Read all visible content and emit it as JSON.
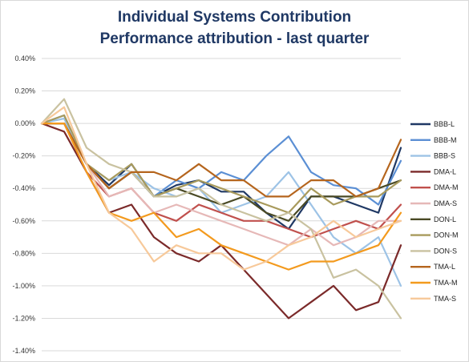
{
  "chart_data": {
    "type": "line",
    "title": "Individual Systems Contribution",
    "subtitle": "Performance attribution - last quarter",
    "ylim": [
      -1.4,
      0.4
    ],
    "yticks": [
      "0.40%",
      "0.20%",
      "0.00%",
      "-0.20%",
      "-0.40%",
      "-0.60%",
      "-0.80%",
      "-1.00%",
      "-1.20%",
      "-1.40%"
    ],
    "ytick_values": [
      0.4,
      0.2,
      0.0,
      -0.2,
      -0.4,
      -0.6,
      -0.8,
      -1.0,
      -1.2,
      -1.4
    ],
    "grid": true,
    "legend": "right",
    "x": [
      0,
      4,
      8,
      12,
      16,
      20,
      24,
      28,
      32,
      36,
      40,
      44,
      48,
      52,
      56,
      60,
      64
    ],
    "xlim": [
      0,
      64
    ],
    "series": [
      {
        "name": "BBB-L",
        "color": "#1f3864",
        "values": [
          0.0,
          0.0,
          -0.25,
          -0.38,
          -0.25,
          -0.45,
          -0.38,
          -0.35,
          -0.42,
          -0.42,
          -0.55,
          -0.65,
          -0.45,
          -0.45,
          -0.5,
          -0.55,
          -0.15
        ]
      },
      {
        "name": "BBB-M",
        "color": "#5b8fd4",
        "values": [
          0.0,
          0.05,
          -0.25,
          -0.4,
          -0.3,
          -0.45,
          -0.35,
          -0.4,
          -0.3,
          -0.35,
          -0.2,
          -0.08,
          -0.3,
          -0.38,
          -0.4,
          -0.5,
          -0.23
        ]
      },
      {
        "name": "BBB-S",
        "color": "#9dc3e6",
        "values": [
          0.0,
          0.03,
          -0.25,
          -0.35,
          -0.3,
          -0.4,
          -0.45,
          -0.4,
          -0.55,
          -0.5,
          -0.45,
          -0.3,
          -0.5,
          -0.7,
          -0.8,
          -0.7,
          -1.0
        ]
      },
      {
        "name": "DMA-L",
        "color": "#7b2a2a",
        "values": [
          0.0,
          -0.05,
          -0.3,
          -0.55,
          -0.5,
          -0.7,
          -0.8,
          -0.85,
          -0.75,
          -0.9,
          -1.05,
          -1.2,
          -1.1,
          -1.0,
          -1.15,
          -1.1,
          -0.75
        ]
      },
      {
        "name": "DMA-M",
        "color": "#c0504d",
        "values": [
          0.0,
          0.0,
          -0.3,
          -0.45,
          -0.4,
          -0.55,
          -0.6,
          -0.5,
          -0.55,
          -0.6,
          -0.6,
          -0.65,
          -0.7,
          -0.65,
          -0.6,
          -0.65,
          -0.5
        ]
      },
      {
        "name": "DMA-S",
        "color": "#e6b8b7",
        "values": [
          0.0,
          0.0,
          -0.25,
          -0.45,
          -0.4,
          -0.55,
          -0.5,
          -0.55,
          -0.6,
          -0.65,
          -0.7,
          -0.75,
          -0.65,
          -0.75,
          -0.7,
          -0.6,
          -0.6
        ]
      },
      {
        "name": "DON-L",
        "color": "#4a4a25",
        "values": [
          0.0,
          0.0,
          -0.25,
          -0.4,
          -0.3,
          -0.45,
          -0.4,
          -0.45,
          -0.5,
          -0.45,
          -0.55,
          -0.6,
          -0.45,
          -0.45,
          -0.45,
          -0.4,
          -0.35
        ]
      },
      {
        "name": "DON-M",
        "color": "#a89a5c",
        "values": [
          0.0,
          0.05,
          -0.25,
          -0.35,
          -0.25,
          -0.45,
          -0.4,
          -0.35,
          -0.4,
          -0.45,
          -0.5,
          -0.55,
          -0.4,
          -0.5,
          -0.45,
          -0.45,
          -0.35
        ]
      },
      {
        "name": "DON-S",
        "color": "#c9c2a0",
        "values": [
          0.0,
          0.15,
          -0.15,
          -0.25,
          -0.3,
          -0.45,
          -0.45,
          -0.4,
          -0.5,
          -0.55,
          -0.6,
          -0.55,
          -0.65,
          -0.95,
          -0.9,
          -1.0,
          -1.2
        ]
      },
      {
        "name": "TMA-L",
        "color": "#b5651d",
        "values": [
          0.0,
          0.0,
          -0.25,
          -0.4,
          -0.3,
          -0.3,
          -0.35,
          -0.25,
          -0.35,
          -0.35,
          -0.45,
          -0.45,
          -0.35,
          -0.35,
          -0.45,
          -0.4,
          -0.1
        ]
      },
      {
        "name": "TMA-M",
        "color": "#f39a1e",
        "values": [
          0.0,
          0.0,
          -0.3,
          -0.55,
          -0.6,
          -0.55,
          -0.7,
          -0.65,
          -0.75,
          -0.8,
          -0.85,
          -0.9,
          -0.85,
          -0.85,
          -0.8,
          -0.75,
          -0.55
        ]
      },
      {
        "name": "TMA-S",
        "color": "#f7c99a",
        "values": [
          0.0,
          0.1,
          -0.25,
          -0.55,
          -0.65,
          -0.85,
          -0.75,
          -0.8,
          -0.8,
          -0.9,
          -0.85,
          -0.75,
          -0.7,
          -0.6,
          -0.7,
          -0.65,
          -0.6
        ]
      }
    ]
  }
}
